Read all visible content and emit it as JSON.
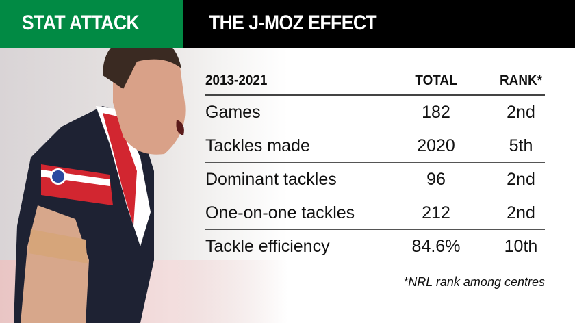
{
  "header": {
    "section": "STAT ATTACK",
    "title": "THE J-MOZ EFFECT"
  },
  "table": {
    "headers": [
      "2013-2021",
      "TOTAL",
      "RANK*"
    ],
    "rows": [
      {
        "stat": "Games",
        "total": "182",
        "rank": "2nd"
      },
      {
        "stat": "Tackles made",
        "total": "2020",
        "rank": "5th"
      },
      {
        "stat": "Dominant tackles",
        "total": "96",
        "rank": "2nd"
      },
      {
        "stat": "One-on-one tackles",
        "total": "212",
        "rank": "2nd"
      },
      {
        "stat": "Tackle efficiency",
        "total": "84.6%",
        "rank": "10th"
      }
    ]
  },
  "footnote": "*NRL rank among centres",
  "colors": {
    "green": "#018a44",
    "black": "#000000"
  }
}
